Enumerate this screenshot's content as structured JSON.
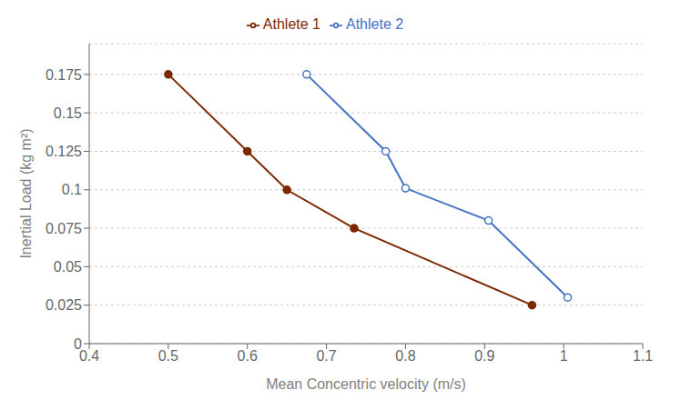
{
  "chart_data": {
    "type": "line",
    "xlabel": "Mean Concentric velocity (m/s)",
    "ylabel": "Inertial Load (kg m²)",
    "series": [
      {
        "name": "Athlete 1",
        "color": "#7B2900",
        "marker": "filled_circle",
        "x": [
          0.5,
          0.6,
          0.65,
          0.735,
          0.96
        ],
        "values": [
          0.175,
          0.125,
          0.1,
          0.075,
          0.025
        ]
      },
      {
        "name": "Athlete 2",
        "color": "#4472C4",
        "marker": "open_circle",
        "x": [
          0.675,
          0.775,
          0.8,
          0.905,
          1.005
        ],
        "values": [
          0.175,
          0.125,
          0.101,
          0.08,
          0.03
        ]
      }
    ],
    "xlim": [
      0.4,
      1.1
    ],
    "xticks": [
      0.4,
      0.5,
      0.6,
      0.7,
      0.8,
      0.9,
      1.0,
      1.1
    ],
    "ylim": [
      0,
      0.195
    ],
    "yticks": [
      0,
      0.025,
      0.05,
      0.075,
      0.1,
      0.125,
      0.15,
      0.175
    ],
    "grid": true,
    "legend": "top"
  }
}
